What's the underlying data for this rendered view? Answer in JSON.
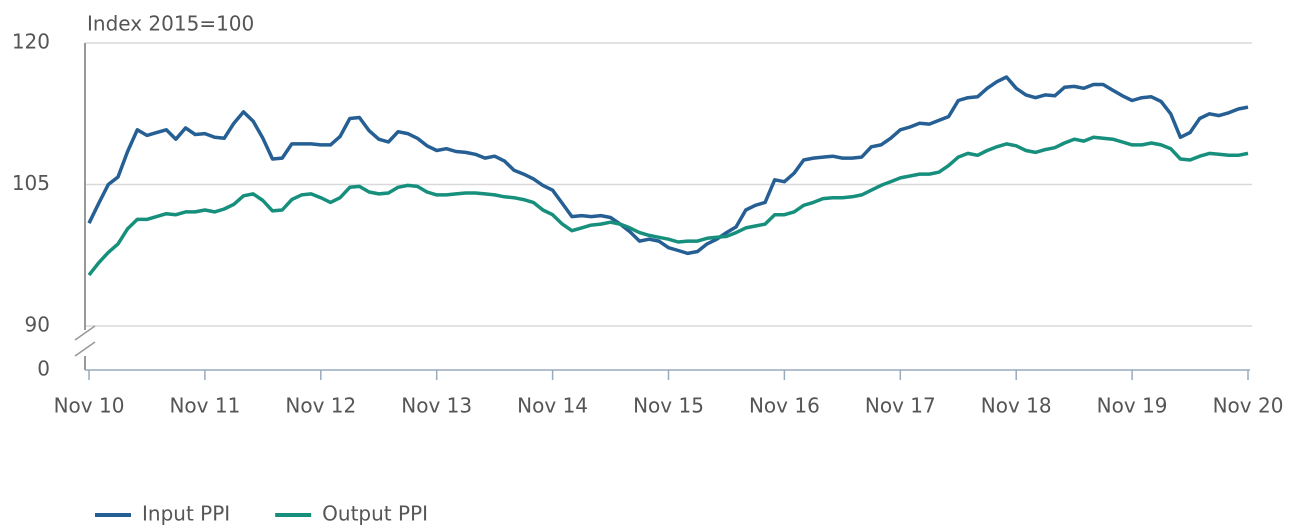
{
  "chart_data": {
    "type": "line",
    "ylabel": "Index 2015=100",
    "categories": [
      "Nov 10",
      null,
      null,
      null,
      null,
      null,
      null,
      null,
      null,
      null,
      null,
      null,
      "Nov 11",
      null,
      null,
      null,
      null,
      null,
      null,
      null,
      null,
      null,
      null,
      null,
      "Nov 12",
      null,
      null,
      null,
      null,
      null,
      null,
      null,
      null,
      null,
      null,
      null,
      "Nov 13",
      null,
      null,
      null,
      null,
      null,
      null,
      null,
      null,
      null,
      null,
      null,
      "Nov 14",
      null,
      null,
      null,
      null,
      null,
      null,
      null,
      null,
      null,
      null,
      null,
      "Nov 15",
      null,
      null,
      null,
      null,
      null,
      null,
      null,
      null,
      null,
      null,
      null,
      "Nov 16",
      null,
      null,
      null,
      null,
      null,
      null,
      null,
      null,
      null,
      null,
      null,
      "Nov 17",
      null,
      null,
      null,
      null,
      null,
      null,
      null,
      null,
      null,
      null,
      null,
      "Nov 18",
      null,
      null,
      null,
      null,
      null,
      null,
      null,
      null,
      null,
      null,
      null,
      "Nov 19",
      null,
      null,
      null,
      null,
      null,
      null,
      null,
      null,
      null,
      null,
      null,
      "Nov 20"
    ],
    "series": [
      {
        "name": "Input PPI",
        "color": "#255f94",
        "values": [
          100.9,
          103.0,
          105.0,
          105.8,
          108.5,
          110.8,
          110.2,
          110.5,
          110.8,
          109.8,
          111.0,
          110.3,
          110.4,
          110.0,
          109.9,
          111.5,
          112.7,
          111.7,
          109.9,
          107.7,
          107.8,
          109.3,
          109.3,
          109.3,
          109.2,
          109.2,
          110.1,
          112.0,
          112.1,
          110.7,
          109.8,
          109.5,
          110.6,
          110.4,
          109.9,
          109.1,
          108.6,
          108.8,
          108.5,
          108.4,
          108.2,
          107.8,
          108.0,
          107.5,
          106.5,
          106.1,
          105.6,
          104.9,
          104.4,
          103.0,
          101.6,
          101.7,
          101.6,
          101.7,
          101.5,
          100.8,
          100.0,
          99.0,
          99.2,
          99.0,
          98.3,
          98.0,
          97.7,
          97.9,
          98.7,
          99.2,
          99.9,
          100.5,
          102.3,
          102.8,
          103.1,
          105.5,
          105.3,
          106.2,
          107.6,
          107.8,
          107.9,
          108.0,
          107.8,
          107.8,
          107.9,
          109.0,
          109.2,
          109.9,
          110.8,
          111.1,
          111.5,
          111.4,
          111.8,
          112.2,
          113.9,
          114.2,
          114.3,
          115.2,
          115.9,
          116.4,
          115.2,
          114.5,
          114.2,
          114.5,
          114.4,
          115.3,
          115.4,
          115.2,
          115.6,
          115.6,
          115.0,
          114.4,
          113.9,
          114.2,
          114.3,
          113.8,
          112.5,
          110.0,
          110.5,
          112.0,
          112.5,
          112.3,
          112.6,
          113.0,
          113.2
        ]
      },
      {
        "name": "Output PPI",
        "color": "#178f7d",
        "values": [
          95.4,
          96.7,
          97.8,
          98.7,
          100.3,
          101.3,
          101.3,
          101.6,
          101.9,
          101.8,
          102.1,
          102.1,
          102.3,
          102.1,
          102.4,
          102.9,
          103.8,
          104.0,
          103.3,
          102.2,
          102.3,
          103.4,
          103.9,
          104.0,
          103.6,
          103.1,
          103.6,
          104.7,
          104.8,
          104.2,
          104.0,
          104.1,
          104.7,
          104.9,
          104.8,
          104.2,
          103.9,
          103.9,
          104.0,
          104.1,
          104.1,
          104.0,
          103.9,
          103.7,
          103.6,
          103.4,
          103.1,
          102.3,
          101.8,
          100.8,
          100.1,
          100.4,
          100.7,
          100.8,
          101.0,
          100.8,
          100.4,
          99.9,
          99.6,
          99.4,
          99.2,
          98.9,
          99.0,
          99.0,
          99.3,
          99.4,
          99.5,
          99.9,
          100.4,
          100.6,
          100.8,
          101.8,
          101.8,
          102.1,
          102.8,
          103.1,
          103.5,
          103.6,
          103.6,
          103.7,
          103.9,
          104.4,
          104.9,
          105.3,
          105.7,
          105.9,
          106.1,
          106.1,
          106.3,
          107.0,
          107.9,
          108.3,
          108.1,
          108.6,
          109.0,
          109.3,
          109.1,
          108.6,
          108.4,
          108.7,
          108.9,
          109.4,
          109.8,
          109.6,
          110.0,
          109.9,
          109.8,
          109.5,
          109.2,
          109.2,
          109.4,
          109.2,
          108.8,
          107.7,
          107.6,
          108.0,
          108.3,
          108.2,
          108.1,
          108.1,
          108.3
        ]
      }
    ],
    "ylim": [
      0,
      120
    ],
    "yticks": [
      0,
      90,
      105,
      120
    ],
    "axis_break": true,
    "grid": true,
    "legend": "bottom-left"
  }
}
